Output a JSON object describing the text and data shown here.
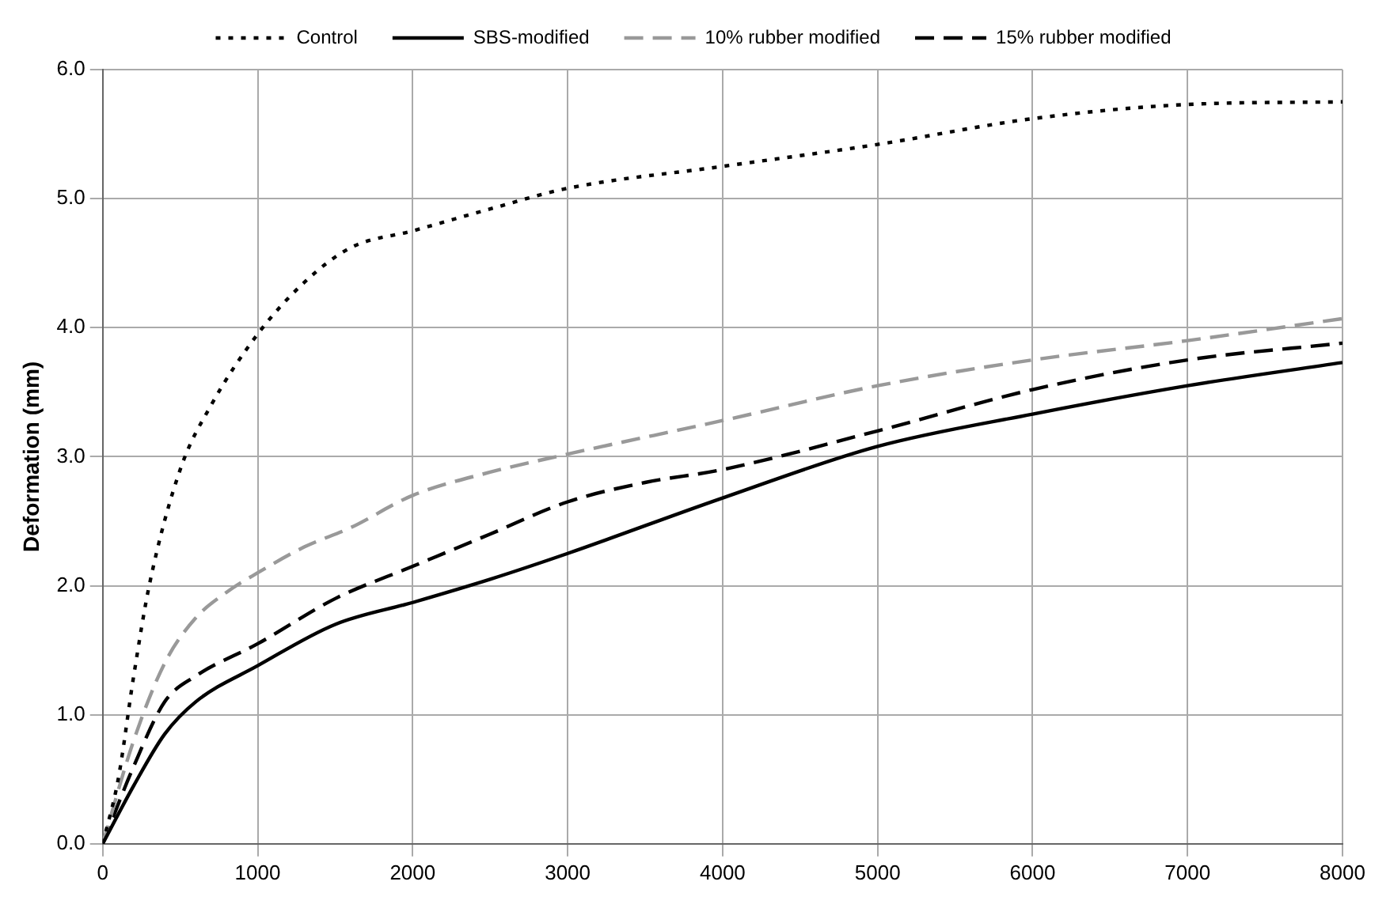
{
  "chart_data": {
    "type": "line",
    "ylabel": "Deformation (mm)",
    "xlim": [
      0,
      8000
    ],
    "ylim": [
      0,
      6
    ],
    "xticks": [
      0,
      1000,
      2000,
      3000,
      4000,
      5000,
      6000,
      7000,
      8000
    ],
    "yticks": [
      {
        "value": 0,
        "label": "0.0"
      },
      {
        "value": 1,
        "label": "1.0"
      },
      {
        "value": 2,
        "label": "2.0"
      },
      {
        "value": 3,
        "label": "3.0"
      },
      {
        "value": 4,
        "label": "4.0"
      },
      {
        "value": 5,
        "label": "5.0"
      },
      {
        "value": 6,
        "label": "6.0"
      }
    ],
    "grid": true,
    "legend": "top",
    "marker": "none",
    "series": [
      {
        "name": "Control",
        "color": "#000000",
        "line_style": "dotted",
        "x": [
          0,
          100,
          200,
          300,
          500,
          700,
          1000,
          1300,
          1600,
          2000,
          2500,
          3000,
          4000,
          5000,
          6000,
          7000,
          8000
        ],
        "values": [
          0,
          0.5,
          1.3,
          2.0,
          2.9,
          3.4,
          3.95,
          4.35,
          4.62,
          4.75,
          4.92,
          5.08,
          5.25,
          5.42,
          5.62,
          5.73,
          5.75
        ]
      },
      {
        "name": "SBS-modified",
        "color": "#000000",
        "line_style": "solid",
        "x": [
          0,
          200,
          400,
          600,
          1000,
          1500,
          2000,
          2500,
          3000,
          4000,
          5000,
          6000,
          7000,
          8000
        ],
        "values": [
          0,
          0.45,
          0.85,
          1.1,
          1.38,
          1.7,
          1.87,
          2.05,
          2.25,
          2.68,
          3.08,
          3.33,
          3.55,
          3.73
        ]
      },
      {
        "name": "10% rubber modified",
        "color": "#999999",
        "line_style": "dashed",
        "x": [
          0,
          200,
          400,
          600,
          800,
          1000,
          1300,
          1600,
          2000,
          2500,
          3000,
          4000,
          5000,
          6000,
          7000,
          8000
        ],
        "values": [
          0,
          0.8,
          1.4,
          1.75,
          1.95,
          2.1,
          2.3,
          2.45,
          2.7,
          2.88,
          3.02,
          3.28,
          3.55,
          3.75,
          3.9,
          4.07
        ]
      },
      {
        "name": "15% rubber modified",
        "color": "#000000",
        "line_style": "dashed",
        "x": [
          0,
          200,
          400,
          600,
          1000,
          1500,
          2000,
          2500,
          3000,
          3500,
          4000,
          5000,
          6000,
          7000,
          8000
        ],
        "values": [
          0,
          0.6,
          1.1,
          1.3,
          1.55,
          1.9,
          2.15,
          2.4,
          2.65,
          2.8,
          2.9,
          3.2,
          3.52,
          3.75,
          3.88
        ]
      }
    ]
  }
}
